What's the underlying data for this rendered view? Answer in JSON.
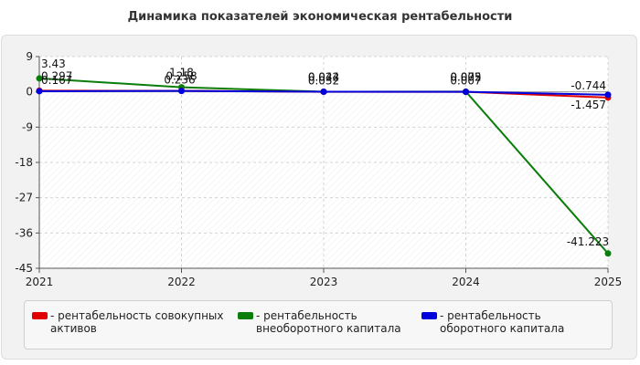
{
  "title": "Динамика показателей экономическая рентабельности",
  "chart_data": {
    "type": "line",
    "title": "Динамика показателей экономическая рентабельности",
    "xlabel": "",
    "ylabel": "",
    "categories": [
      "2021",
      "2022",
      "2023",
      "2024",
      "2025"
    ],
    "ylim": [
      -45,
      9
    ],
    "yticks": [
      "9",
      "0",
      "-9",
      "-18",
      "-27",
      "-36",
      "-45"
    ],
    "grid": true,
    "legend_position": "bottom",
    "series": [
      {
        "name": "рентабельность совокупных активов",
        "color": "#e00000",
        "values": [
          0.297,
          0.258,
          0.022,
          0.005,
          -1.457
        ],
        "labels": [
          "0.297",
          "0.258",
          "0.022",
          "0.005",
          "-1.457"
        ]
      },
      {
        "name": "рентабельность внеоборотного капитала",
        "color": "#0a7d0a",
        "values": [
          3.43,
          1.18,
          0.044,
          0.072,
          -41.223
        ],
        "labels": [
          "3.43",
          "1.18",
          "0.044",
          "0.072",
          "-41.223"
        ]
      },
      {
        "name": "рентабельность оборотного капитала",
        "color": "#0000dd",
        "values": [
          0.167,
          0.236,
          0.032,
          0.007,
          -0.744
        ],
        "labels": [
          "0.167",
          "0.236",
          "0.032",
          "0.007",
          "-0.744"
        ]
      }
    ]
  },
  "legend": {
    "items": [
      {
        "label": "- рентабельность совокупных активов",
        "color": "#e00000"
      },
      {
        "label": "- рентабельность внеоборотного капитала",
        "color": "#0a7d0a"
      },
      {
        "label": "- рентабельность оборотного капитала",
        "color": "#0000dd"
      }
    ]
  }
}
